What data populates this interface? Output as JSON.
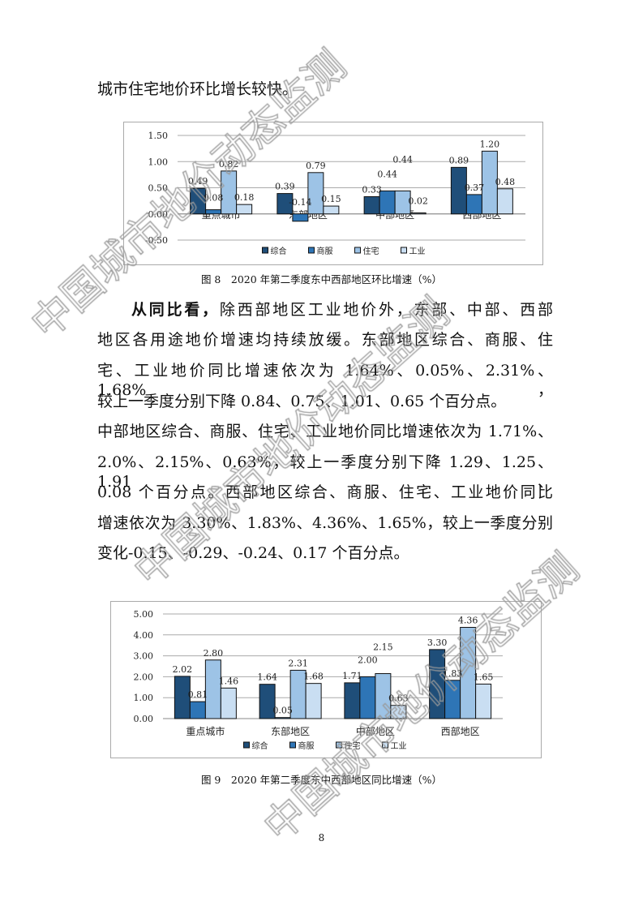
{
  "intro_line": "城市住宅地价环比增长较快。",
  "paragraph": {
    "lead_bold": "从同比看，",
    "first_rest": "除西部地区工业地价外，东部、中部、西部",
    "lines": [
      "地区各用途地价增速均持续放缓。东部地区综合、商服、住",
      "宅、工业地价同比增速依次为 1.64%、0.05%、2.31%、1.68%，",
      "较上一季度分别下降 0.84、0.75、1.01、0.65 个百分点。",
      "中部地区综合、商服、住宅、工业地价同比增速依次为 1.71%、",
      "2.0%、2.15%、0.63%，较上一季度分别下降 1.29、1.25、1.91、",
      "0.08 个百分点。西部地区综合、商服、住宅、工业地价同比",
      "增速依次为 3.30%、1.83%、4.36%、1.65%，较上一季度分别",
      "变化-0.15、-0.29、-0.24、0.17 个百分点。"
    ]
  },
  "captions": {
    "fig8": "图 8　2020 年第二季度东中西部地区环比增速（%）",
    "fig9": "图 9　2020 年第二季度东中西部地区同比增速（%）"
  },
  "page_number": "8",
  "watermark": "中国城市地价动态监测",
  "chart_data": [
    {
      "type": "bar",
      "categories": [
        "重点城市",
        "东部地区",
        "中部地区",
        "西部地区"
      ],
      "series": [
        {
          "name": "综合",
          "values": [
            0.49,
            0.39,
            0.33,
            0.89
          ],
          "color": "#1f4e79"
        },
        {
          "name": "商服",
          "values": [
            0.08,
            -0.14,
            0.44,
            0.37
          ],
          "color": "#2e75b6"
        },
        {
          "name": "住宅",
          "values": [
            0.82,
            0.79,
            0.44,
            1.2
          ],
          "color": "#9dc3e6"
        },
        {
          "name": "工业",
          "values": [
            0.18,
            0.15,
            0.02,
            0.48
          ],
          "color": "#c9def2"
        }
      ],
      "yticks": [
        "1.50",
        "1.00",
        "0.50",
        "0.00",
        "-0.50"
      ],
      "ylim": [
        -0.5,
        1.5
      ],
      "grid": true,
      "legend": "bottom"
    },
    {
      "type": "bar",
      "categories": [
        "重点城市",
        "东部地区",
        "中部地区",
        "西部地区"
      ],
      "series": [
        {
          "name": "综合",
          "values": [
            2.02,
            1.64,
            1.71,
            3.3
          ],
          "color": "#1f4e79"
        },
        {
          "name": "商服",
          "values": [
            0.81,
            0.05,
            2.0,
            1.83
          ],
          "color": "#2e75b6"
        },
        {
          "name": "住宅",
          "values": [
            2.8,
            2.31,
            2.15,
            4.36
          ],
          "color": "#9dc3e6"
        },
        {
          "name": "工业",
          "values": [
            1.46,
            1.68,
            0.63,
            1.65
          ],
          "color": "#c9def2"
        }
      ],
      "yticks": [
        "5.00",
        "4.00",
        "3.00",
        "2.00",
        "1.00",
        "0.00"
      ],
      "ylim": [
        0,
        5
      ],
      "grid": true,
      "legend": "bottom"
    }
  ]
}
